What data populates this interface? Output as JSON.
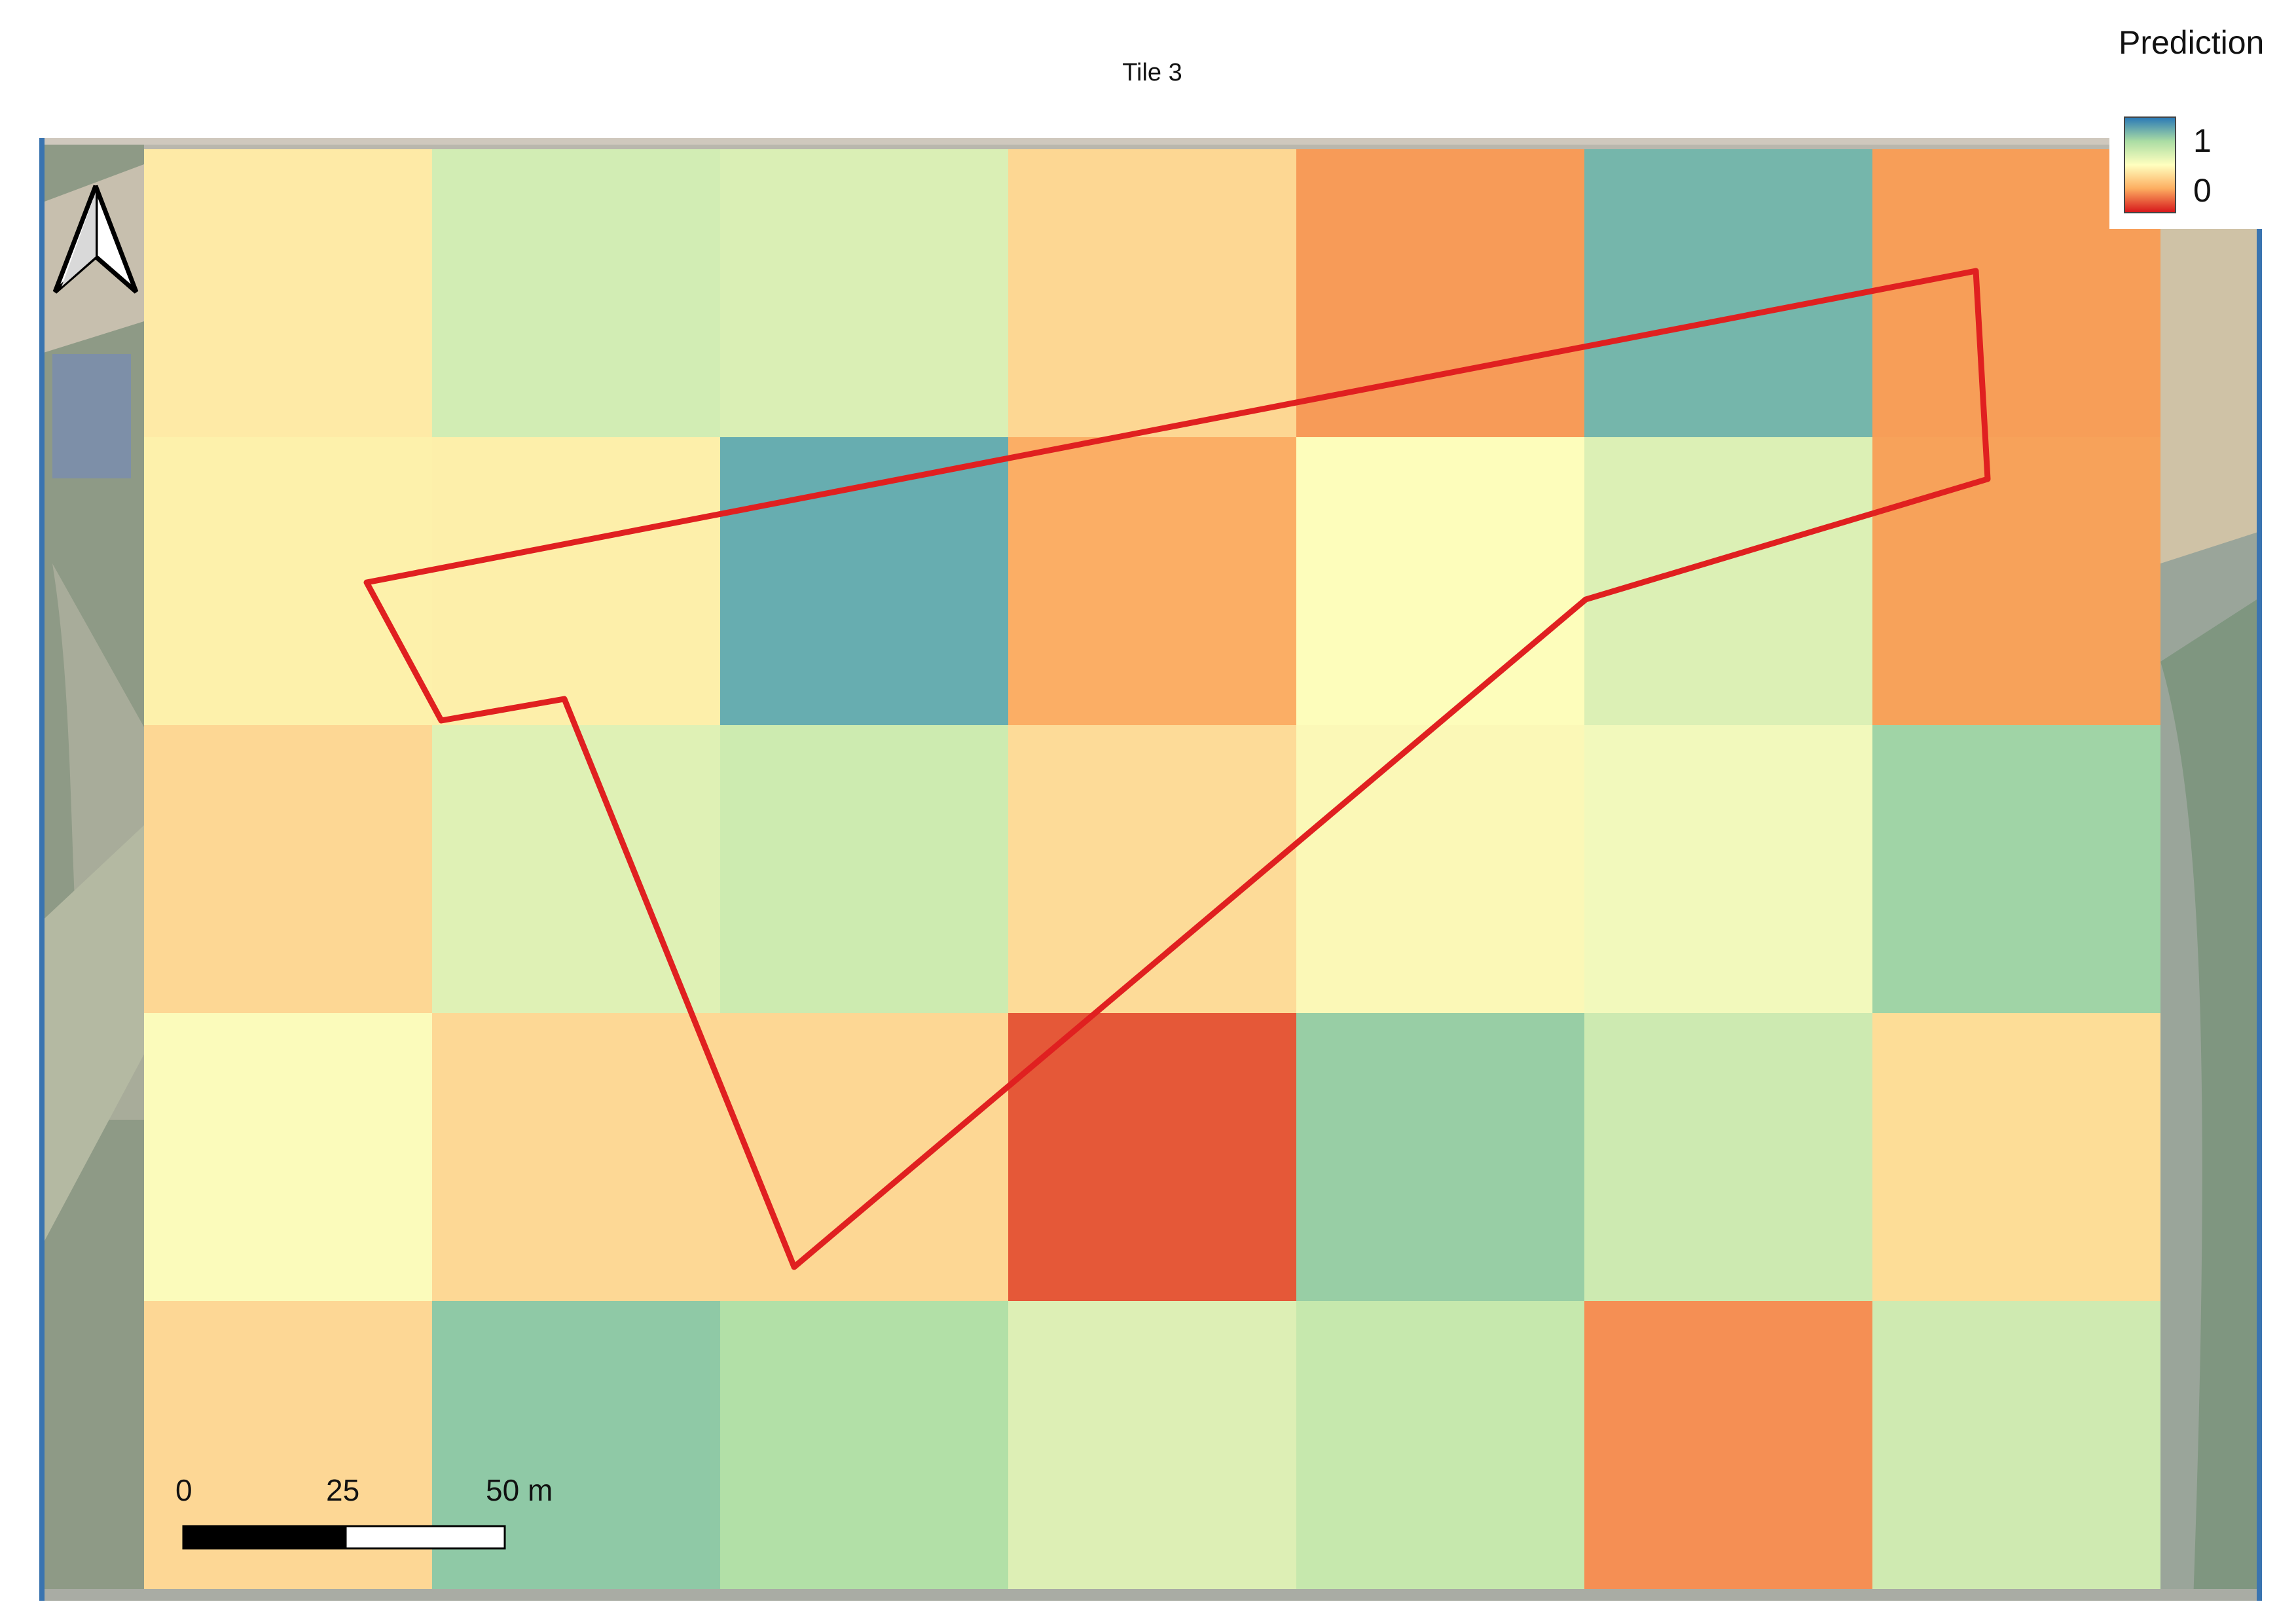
{
  "map_title": "Tile 3",
  "legend": {
    "title": "Prediction",
    "max_label": "1",
    "min_label": "0",
    "ramp_colors": [
      "#2c7bb6",
      "#abdda4",
      "#ffffbf",
      "#fdae61",
      "#d7191c"
    ]
  },
  "scale_bar": {
    "labels": [
      "0",
      "25",
      "50 m"
    ]
  },
  "north_arrow": {
    "icon": "north-arrow-icon"
  },
  "prediction_grid": {
    "rows": 5,
    "cols": 7,
    "colors": [
      [
        "#feeaa6",
        "#d2edb4",
        "#daefb5",
        "#fdd793",
        "#f79b58",
        "#75b6ab",
        "#f79e58"
      ],
      [
        "#fdf1ab",
        "#fdefaa",
        "#67adb0",
        "#fbae65",
        "#fdfdbb",
        "#dcf0b5",
        "#f7a25a"
      ],
      [
        "#fdd794",
        "#dff1b5",
        "#cdebb0",
        "#fddb98",
        "#fbf8b7",
        "#f2f9bc",
        "#a0d4a6"
      ],
      [
        "#fbfbbb",
        "#fdd895",
        "#fdd794",
        "#e55838",
        "#98cea5",
        "#cdeab1",
        "#fddd97"
      ],
      [
        "#fdd795",
        "#8fc9a6",
        "#b2e0a7",
        "#ddefb5",
        "#c6e8ad",
        "#f58f54",
        "#cfeab1"
      ]
    ]
  },
  "field_boundary": {
    "stroke_color": "#e02020"
  },
  "colors": {
    "frame_edge": "#3a74b0",
    "boundary": "#e02020"
  }
}
